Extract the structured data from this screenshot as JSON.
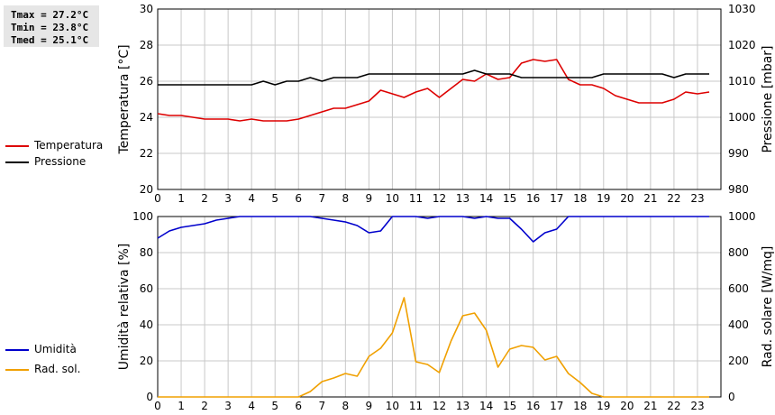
{
  "stats": {
    "tmax": "Tmax = 27.2°C",
    "tmin": "Tmin = 23.8°C",
    "tmed": "Tmed = 25.1°C"
  },
  "colors": {
    "temperatura": "#dd0000",
    "pressione": "#000000",
    "umidita": "#0000cc",
    "radsol": "#f0a000",
    "grid": "#c8c8c8"
  },
  "chart_data": [
    {
      "type": "line",
      "x": [
        0,
        0.5,
        1,
        1.5,
        2,
        2.5,
        3,
        3.5,
        4,
        4.5,
        5,
        5.5,
        6,
        6.5,
        7,
        7.5,
        8,
        8.5,
        9,
        9.5,
        10,
        10.5,
        11,
        11.5,
        12,
        12.5,
        13,
        13.5,
        14,
        14.5,
        15,
        15.5,
        16,
        16.5,
        17,
        17.5,
        18,
        18.5,
        19,
        19.5,
        20,
        20.5,
        21,
        21.5,
        22,
        22.5,
        23,
        23.5
      ],
      "xticks": [
        "0",
        "1",
        "2",
        "3",
        "4",
        "5",
        "6",
        "7",
        "8",
        "9",
        "10",
        "11",
        "12",
        "13",
        "14",
        "15",
        "16",
        "17",
        "18",
        "19",
        "20",
        "21",
        "22",
        "23"
      ],
      "ylabel": "Temperatura [°C]",
      "ylim": [
        20,
        30
      ],
      "yticks": [
        "20",
        "22",
        "24",
        "26",
        "28",
        "30"
      ],
      "y2label": "Pressione [mbar]",
      "y2lim": [
        980,
        1030
      ],
      "y2ticks": [
        "980",
        "990",
        "1000",
        "1010",
        "1020",
        "1030"
      ],
      "grid": true,
      "series": [
        {
          "name": "Temperatura",
          "axis": "left",
          "values": [
            24.2,
            24.1,
            24.1,
            24.0,
            23.9,
            23.9,
            23.9,
            23.8,
            23.9,
            23.8,
            23.8,
            23.8,
            23.9,
            24.1,
            24.3,
            24.5,
            24.5,
            24.7,
            24.9,
            25.5,
            25.3,
            25.1,
            25.4,
            25.6,
            25.1,
            25.6,
            26.1,
            26.0,
            26.4,
            26.1,
            26.2,
            27.0,
            27.2,
            27.1,
            27.2,
            26.1,
            25.8,
            25.8,
            25.6,
            25.2,
            25.0,
            24.8,
            24.8,
            24.8,
            25.0,
            25.4,
            25.3,
            25.4
          ]
        },
        {
          "name": "Pressione",
          "axis": "right",
          "values": [
            1009,
            1009,
            1009,
            1009,
            1009,
            1009,
            1009,
            1009,
            1009,
            1010,
            1009,
            1010,
            1010,
            1011,
            1010,
            1011,
            1011,
            1011,
            1012,
            1012,
            1012,
            1012,
            1012,
            1012,
            1012,
            1012,
            1012,
            1013,
            1012,
            1012,
            1012,
            1011,
            1011,
            1011,
            1011,
            1011,
            1011,
            1011,
            1012,
            1012,
            1012,
            1012,
            1012,
            1012,
            1011,
            1012,
            1012,
            1012
          ]
        }
      ],
      "legend": "left"
    },
    {
      "type": "line",
      "x": [
        0,
        0.5,
        1,
        1.5,
        2,
        2.5,
        3,
        3.5,
        4,
        4.5,
        5,
        5.5,
        6,
        6.5,
        7,
        7.5,
        8,
        8.5,
        9,
        9.5,
        10,
        10.5,
        11,
        11.5,
        12,
        12.5,
        13,
        13.5,
        14,
        14.5,
        15,
        15.5,
        16,
        16.5,
        17,
        17.5,
        18,
        18.5,
        19,
        19.5,
        20,
        20.5,
        21,
        21.5,
        22,
        22.5,
        23,
        23.5
      ],
      "xticks": [
        "0",
        "1",
        "2",
        "3",
        "4",
        "5",
        "6",
        "7",
        "8",
        "9",
        "10",
        "11",
        "12",
        "13",
        "14",
        "15",
        "16",
        "17",
        "18",
        "19",
        "20",
        "21",
        "22",
        "23"
      ],
      "ylabel": "Umidità relativa [%]",
      "ylim": [
        0,
        100
      ],
      "yticks": [
        "0",
        "20",
        "40",
        "60",
        "80",
        "100"
      ],
      "y2label": "Rad. solare [W/mq]",
      "y2lim": [
        0,
        1000
      ],
      "y2ticks": [
        "0",
        "200",
        "400",
        "600",
        "800",
        "1000"
      ],
      "grid": true,
      "series": [
        {
          "name": "Umidità",
          "axis": "left",
          "values": [
            88,
            92,
            94,
            95,
            96,
            98,
            99,
            100,
            100,
            100,
            100,
            100,
            100,
            100,
            99,
            98,
            97,
            95,
            91,
            92,
            100,
            100,
            100,
            99,
            100,
            100,
            100,
            99,
            100,
            99,
            99,
            93,
            86,
            91,
            93,
            100,
            100,
            100,
            100,
            100,
            100,
            100,
            100,
            100,
            100,
            100,
            100,
            100
          ]
        },
        {
          "name": "Rad. sol.",
          "axis": "right",
          "values": [
            0,
            0,
            0,
            0,
            0,
            0,
            0,
            0,
            0,
            0,
            0,
            0,
            0,
            30,
            85,
            105,
            130,
            115,
            225,
            270,
            355,
            550,
            195,
            180,
            135,
            310,
            450,
            465,
            370,
            165,
            265,
            285,
            275,
            205,
            225,
            130,
            80,
            20,
            0,
            0,
            0,
            0,
            0,
            0,
            0,
            0,
            0,
            0
          ]
        }
      ],
      "legend": "left"
    }
  ]
}
